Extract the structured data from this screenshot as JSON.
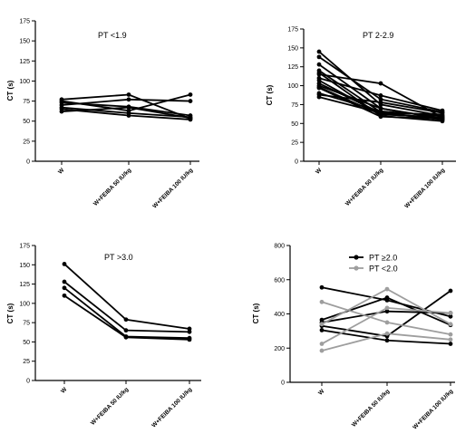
{
  "chart_data": [
    {
      "type": "line",
      "title": "PT <1.9",
      "ylabel": "CT (s)",
      "categories": [
        "W",
        "W+FEIBA 50 IU/kg",
        "W+FEIBA 100 IU/kg"
      ],
      "yticks": [
        "0",
        "25",
        "50",
        "75",
        "100",
        "125",
        "150",
        "175"
      ],
      "ylim": [
        0,
        175
      ],
      "color": "#000000",
      "series": [
        {
          "values": [
            77,
            83,
            53
          ]
        },
        {
          "values": [
            75,
            63,
            83
          ]
        },
        {
          "values": [
            73,
            68,
            57
          ]
        },
        {
          "values": [
            70,
            77,
            75
          ]
        },
        {
          "values": [
            67,
            60,
            55
          ]
        },
        {
          "values": [
            65,
            57,
            52
          ]
        },
        {
          "values": [
            62,
            67,
            54
          ]
        }
      ]
    },
    {
      "type": "line",
      "title": "PT 2-2.9",
      "ylabel": "CT (s)",
      "categories": [
        "W",
        "W+FEIBA 50 IU/kg",
        "W+FEIBA 100 IU/kg"
      ],
      "yticks": [
        "0",
        "25",
        "50",
        "75",
        "100",
        "125",
        "150",
        "175"
      ],
      "ylim": [
        0,
        175
      ],
      "color": "#000000",
      "series": [
        {
          "values": [
            145,
            75,
            60
          ]
        },
        {
          "values": [
            138,
            82,
            65
          ]
        },
        {
          "values": [
            128,
            70,
            57
          ]
        },
        {
          "values": [
            120,
            65,
            55
          ]
        },
        {
          "values": [
            117,
            60,
            53
          ]
        },
        {
          "values": [
            115,
            103,
            58
          ]
        },
        {
          "values": [
            110,
            87,
            67
          ]
        },
        {
          "values": [
            107,
            62,
            58
          ]
        },
        {
          "values": [
            103,
            64,
            62
          ]
        },
        {
          "values": [
            100,
            70,
            56
          ]
        },
        {
          "values": [
            98,
            62,
            58
          ]
        },
        {
          "values": [
            97,
            59,
            56
          ]
        },
        {
          "values": [
            90,
            66,
            60
          ]
        },
        {
          "values": [
            88,
            78,
            64
          ]
        },
        {
          "values": [
            85,
            64,
            55
          ]
        }
      ]
    },
    {
      "type": "line",
      "title": "PT >3.0",
      "ylabel": "CT (s)",
      "categories": [
        "W",
        "W+FEIBA 50 IU/kg",
        "W+FEIBA 100 IU/kg"
      ],
      "yticks": [
        "0",
        "25",
        "50",
        "75",
        "100",
        "125",
        "150",
        "175"
      ],
      "ylim": [
        0,
        175
      ],
      "color": "#000000",
      "series": [
        {
          "values": [
            151,
            79,
            67
          ]
        },
        {
          "values": [
            128,
            65,
            63
          ]
        },
        {
          "values": [
            120,
            57,
            55
          ]
        },
        {
          "values": [
            110,
            56,
            53
          ]
        }
      ]
    },
    {
      "type": "line",
      "title": "",
      "ylabel": "CT (s)",
      "categories": [
        "W",
        "W+FEIBA 50 IU/kg",
        "W+FEIBA 100 IU/kg"
      ],
      "yticks": [
        "0",
        "200",
        "400",
        "600",
        "800"
      ],
      "ylim": [
        0,
        800
      ],
      "legend": {
        "position": "top-center",
        "entries": [
          {
            "label": "PT ≥2.0",
            "color": "#000000"
          },
          {
            "label": "PT <2.0",
            "color": "#9e9e9e"
          }
        ]
      },
      "series": [
        {
          "group": "PT ≥2.0",
          "color": "#000000",
          "values": [
            555,
            480,
            385
          ]
        },
        {
          "group": "PT ≥2.0",
          "color": "#000000",
          "values": [
            365,
            495,
            335
          ]
        },
        {
          "group": "PT ≥2.0",
          "color": "#000000",
          "values": [
            350,
            415,
            405
          ]
        },
        {
          "group": "PT ≥2.0",
          "color": "#000000",
          "values": [
            330,
            270,
            535
          ]
        },
        {
          "group": "PT ≥2.0",
          "color": "#000000",
          "values": [
            305,
            245,
            225
          ]
        },
        {
          "group": "PT <2.0",
          "color": "#9e9e9e",
          "values": [
            470,
            350,
            280
          ]
        },
        {
          "group": "PT <2.0",
          "color": "#9e9e9e",
          "values": [
            340,
            545,
            340
          ]
        },
        {
          "group": "PT <2.0",
          "color": "#9e9e9e",
          "values": [
            225,
            435,
            405
          ]
        },
        {
          "group": "PT <2.0",
          "color": "#9e9e9e",
          "values": [
            185,
            285,
            250
          ]
        }
      ]
    }
  ]
}
